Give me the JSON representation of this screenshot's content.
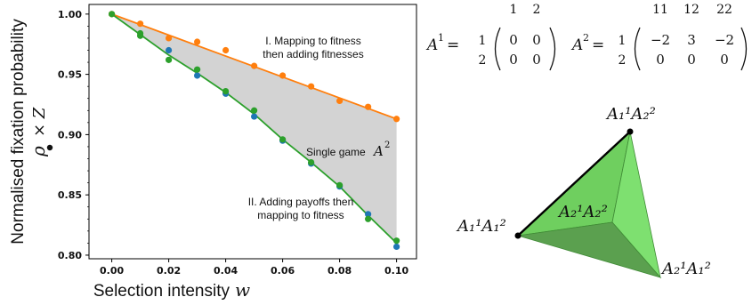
{
  "chart_data": {
    "type": "scatter",
    "xlabel": "Selection intensity",
    "xlabel_var": "w",
    "ylabel": "Normalised fixation probability",
    "ylabel_math": "ρ",
    "ylabel_times": "× Z",
    "xlim": [
      -0.008,
      0.107
    ],
    "ylim": [
      0.797,
      1.008
    ],
    "x_ticks": [
      "0.00",
      "0.02",
      "0.04",
      "0.06",
      "0.08",
      "0.10"
    ],
    "y_ticks": [
      "0.80",
      "0.85",
      "0.90",
      "0.95",
      "1.00"
    ],
    "x_tick_values": [
      0.0,
      0.02,
      0.04,
      0.06,
      0.08,
      0.1
    ],
    "y_tick_values": [
      0.8,
      0.85,
      0.9,
      0.95,
      1.0
    ],
    "shaded_region_color": "#d3d3d3",
    "annotations": {
      "upper_line1": "I. Mapping to fitness",
      "upper_line2": "then adding fitnesses",
      "middle_text": "Single game",
      "middle_math": "A",
      "middle_sup": "2",
      "lower_line1": "II. Adding payoffs then",
      "lower_line2": "mapping to fitness"
    },
    "series": [
      {
        "color": "#ff7f0e",
        "line": [
          [
            0.0,
            1.0
          ],
          [
            0.1,
            0.913
          ]
        ],
        "points": [
          [
            0.0,
            1.0
          ],
          [
            0.01,
            0.992
          ],
          [
            0.02,
            0.98
          ],
          [
            0.03,
            0.977
          ],
          [
            0.04,
            0.97
          ],
          [
            0.05,
            0.957
          ],
          [
            0.06,
            0.949
          ],
          [
            0.07,
            0.94
          ],
          [
            0.08,
            0.928
          ],
          [
            0.09,
            0.923
          ],
          [
            0.1,
            0.913
          ]
        ]
      },
      {
        "color": "#1f77b4",
        "points": [
          [
            0.02,
            0.97
          ],
          [
            0.03,
            0.949
          ],
          [
            0.04,
            0.934
          ],
          [
            0.05,
            0.915
          ],
          [
            0.06,
            0.895
          ],
          [
            0.07,
            0.876
          ],
          [
            0.08,
            0.857
          ],
          [
            0.09,
            0.834
          ],
          [
            0.1,
            0.807
          ]
        ]
      },
      {
        "color": "#2ca02c",
        "line": [
          [
            0.0,
            1.0
          ],
          [
            0.01,
            0.983
          ],
          [
            0.02,
            0.966
          ],
          [
            0.03,
            0.951
          ],
          [
            0.04,
            0.935
          ],
          [
            0.05,
            0.917
          ],
          [
            0.06,
            0.896
          ],
          [
            0.07,
            0.877
          ],
          [
            0.08,
            0.857
          ],
          [
            0.09,
            0.833
          ],
          [
            0.1,
            0.81
          ]
        ],
        "points": [
          [
            0.0,
            1.0
          ],
          [
            0.01,
            0.984
          ],
          [
            0.01,
            0.982
          ],
          [
            0.02,
            0.962
          ],
          [
            0.03,
            0.954
          ],
          [
            0.04,
            0.936
          ],
          [
            0.05,
            0.92
          ],
          [
            0.06,
            0.896
          ],
          [
            0.07,
            0.877
          ],
          [
            0.08,
            0.858
          ],
          [
            0.09,
            0.83
          ],
          [
            0.1,
            0.812
          ]
        ]
      }
    ]
  },
  "matrices": {
    "a1": {
      "name": "A",
      "sup": "1",
      "cols": [
        "1",
        "2"
      ],
      "rows": [
        "1",
        "2"
      ],
      "values": [
        [
          "0",
          "0"
        ],
        [
          "0",
          "0"
        ]
      ]
    },
    "a2": {
      "name": "A",
      "sup": "2",
      "cols": [
        "11",
        "12",
        "22"
      ],
      "rows": [
        "1",
        "2"
      ],
      "values": [
        [
          "−2",
          "3",
          "−2"
        ],
        [
          "0",
          "0",
          "0"
        ]
      ]
    }
  },
  "simplex": {
    "top_label": "A₁¹A₂²",
    "left_label": "A₁¹A₁²",
    "right_label": "A₂¹A₁²",
    "inner_label": "A₂¹A₂²",
    "face_colors": [
      "#6fcf5f",
      "#5ba04f",
      "#7ee070"
    ]
  }
}
